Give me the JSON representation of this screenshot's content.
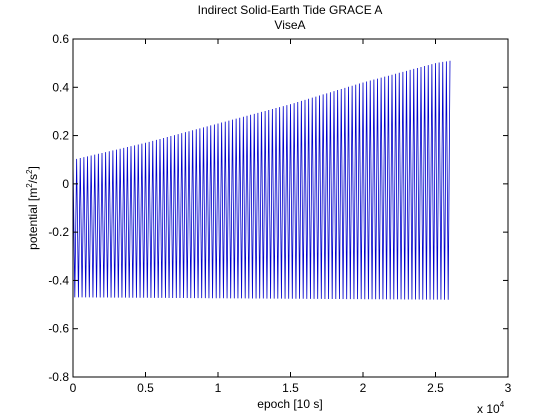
{
  "chart_data": {
    "type": "line",
    "title": "Indirect Solid-Earth Tide GRACE A",
    "subtitle": "ViseA",
    "xlabel": "epoch [10 s]",
    "ylabel_main": "potential [m",
    "ylabel_sup1": "2",
    "ylabel_mid": "/s",
    "ylabel_sup2": "2",
    "ylabel_end": "]",
    "x_multiplier_base": "x 10",
    "x_multiplier_exp": "4",
    "xlim": [
      0,
      3
    ],
    "ylim": [
      -0.8,
      0.6
    ],
    "x_ticks": [
      0,
      0.5,
      1,
      1.5,
      2,
      2.5,
      3
    ],
    "x_tick_labels": [
      "0",
      "0.5",
      "1",
      "1.5",
      "2",
      "2.5",
      "3"
    ],
    "y_ticks": [
      -0.8,
      -0.6,
      -0.4,
      -0.2,
      0,
      0.2,
      0.4,
      0.6
    ],
    "y_tick_labels": [
      "-0.8",
      "-0.6",
      "-0.4",
      "-0.2",
      "0",
      "0.2",
      "0.4",
      "0.6"
    ],
    "grid": false,
    "line_color": "#0000cc",
    "series": [
      {
        "x_range": [
          0,
          2.6
        ],
        "oscillation_count": 104,
        "upper_envelope": {
          "x": [
            0,
            0.5,
            1.0,
            1.5,
            2.0,
            2.5,
            2.6
          ],
          "y": [
            0.1,
            0.17,
            0.25,
            0.33,
            0.42,
            0.5,
            0.51
          ]
        },
        "lower_envelope": {
          "x": [
            0,
            2.6
          ],
          "y": [
            -0.47,
            -0.48
          ]
        }
      }
    ]
  }
}
